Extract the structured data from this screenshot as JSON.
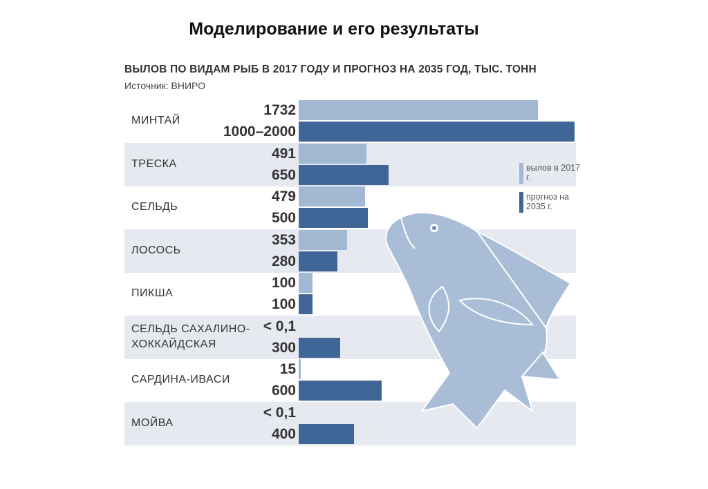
{
  "title": "Моделирование и его результаты",
  "chart_data": {
    "type": "bar",
    "orientation": "horizontal",
    "title": "ВЫЛОВ ПО ВИДАМ РЫБ В 2017 ГОДУ И ПРОГНОЗ НА 2035 ГОД, ТЫС. ТОНН",
    "subtitle": "Источник: ВНИРО",
    "categories": [
      "МИНТАЙ",
      "ТРЕСКА",
      "СЕЛЬДЬ",
      "ЛОСОСЬ",
      "ПИКША",
      "СЕЛЬДЬ САХАЛИНО-ХОККАЙДСКАЯ",
      "САРДИНА-ИВАСИ",
      "МОЙВА"
    ],
    "series": [
      {
        "name": "вылов в 2017 г.",
        "color": "#a3b8d3",
        "values": [
          1732,
          491,
          479,
          353,
          100,
          0.1,
          15,
          0.1
        ],
        "value_labels": [
          "1732",
          "491",
          "479",
          "353",
          "100",
          "< 0,1",
          "15",
          "< 0,1"
        ]
      },
      {
        "name": "прогноз на 2035 г.",
        "color": "#3f6696",
        "values": [
          2000,
          650,
          500,
          280,
          100,
          300,
          600,
          400
        ],
        "value_labels": [
          "1000–2000",
          "650",
          "500",
          "280",
          "100",
          "300",
          "600",
          "400"
        ]
      }
    ],
    "xlim": [
      0,
      2000
    ],
    "band_color": "#e6e9f0"
  }
}
